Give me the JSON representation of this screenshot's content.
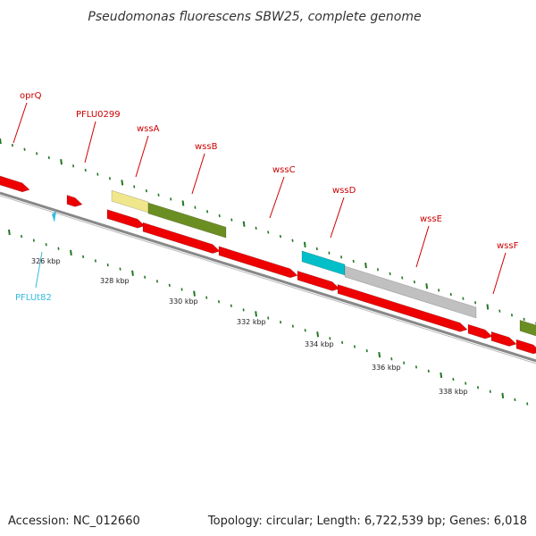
{
  "title": "Pseudomonas fluorescens SBW25, complete genome",
  "footer": {
    "accession": "Accession: NC_012660",
    "summary": "Topology: circular; Length: 6,722,539 bp; Genes: 6,018"
  },
  "colors": {
    "cds": "#ee0000",
    "backbone": "#888888",
    "tick": "#227722",
    "label": "#cc0000",
    "trna": "#33bbdd",
    "feature_olive": "#6b8e23",
    "feature_pale": "#f0e68c",
    "feature_cyan": "#00bfc8",
    "feature_grey": "#c0c0c0"
  },
  "gene_labels": [
    {
      "name": "oprQ"
    },
    {
      "name": "PFLU0299"
    },
    {
      "name": "wssA"
    },
    {
      "name": "wssB"
    },
    {
      "name": "wssC"
    },
    {
      "name": "wssD"
    },
    {
      "name": "wssE"
    },
    {
      "name": "wssF"
    }
  ],
  "trna_labels": [
    {
      "name": "PFLUt82"
    }
  ],
  "scale_labels": [
    "326 kbp",
    "328 kbp",
    "330 kbp",
    "332 kbp",
    "334 kbp",
    "336 kbp",
    "338 kbp"
  ]
}
